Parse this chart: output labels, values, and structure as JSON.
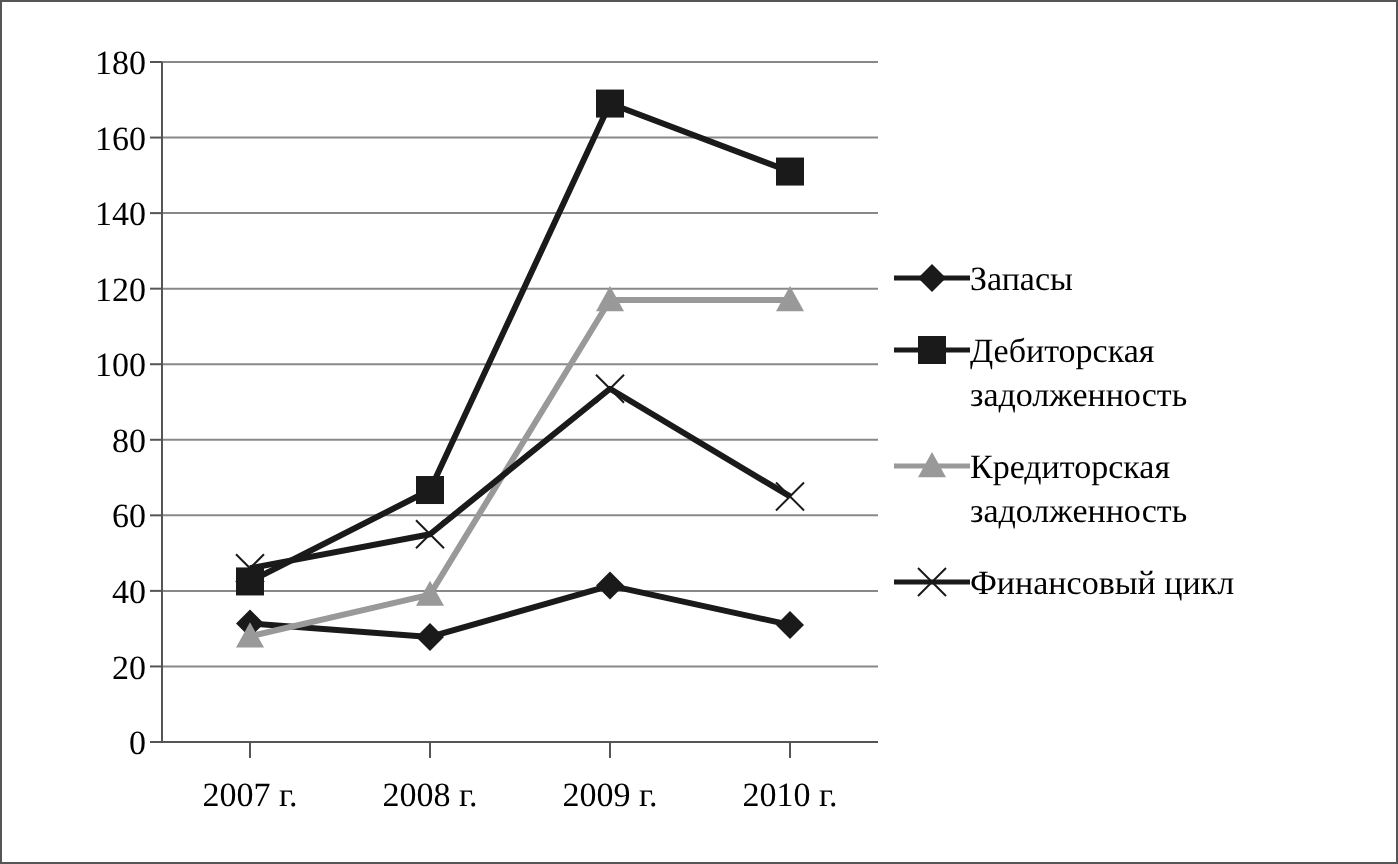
{
  "chart_data": {
    "type": "line",
    "categories": [
      "2007 г.",
      "2008 г.",
      "2009 г.",
      "2010 г."
    ],
    "series": [
      {
        "name": "Запасы",
        "color": "#1a1a1a",
        "marker": "diamond",
        "values": [
          31.4,
          27.8,
          41.4,
          31
        ]
      },
      {
        "name": "Дебиторская задолженность",
        "color": "#1a1a1a",
        "marker": "square",
        "values": [
          42.5,
          66.7,
          169,
          151
        ]
      },
      {
        "name": "Кредиторская задолженность",
        "color": "#999999",
        "marker": "triangle",
        "values": [
          28,
          39,
          117,
          117
        ]
      },
      {
        "name": "Финансовый цикл",
        "color": "#1a1a1a",
        "marker": "cross",
        "values": [
          46,
          55,
          93.5,
          65
        ]
      }
    ],
    "ylim": [
      0,
      180
    ],
    "yticks": [
      0,
      20,
      40,
      60,
      80,
      100,
      120,
      140,
      160,
      180
    ],
    "grid": "y",
    "legend": "right",
    "line_style": "solid"
  }
}
